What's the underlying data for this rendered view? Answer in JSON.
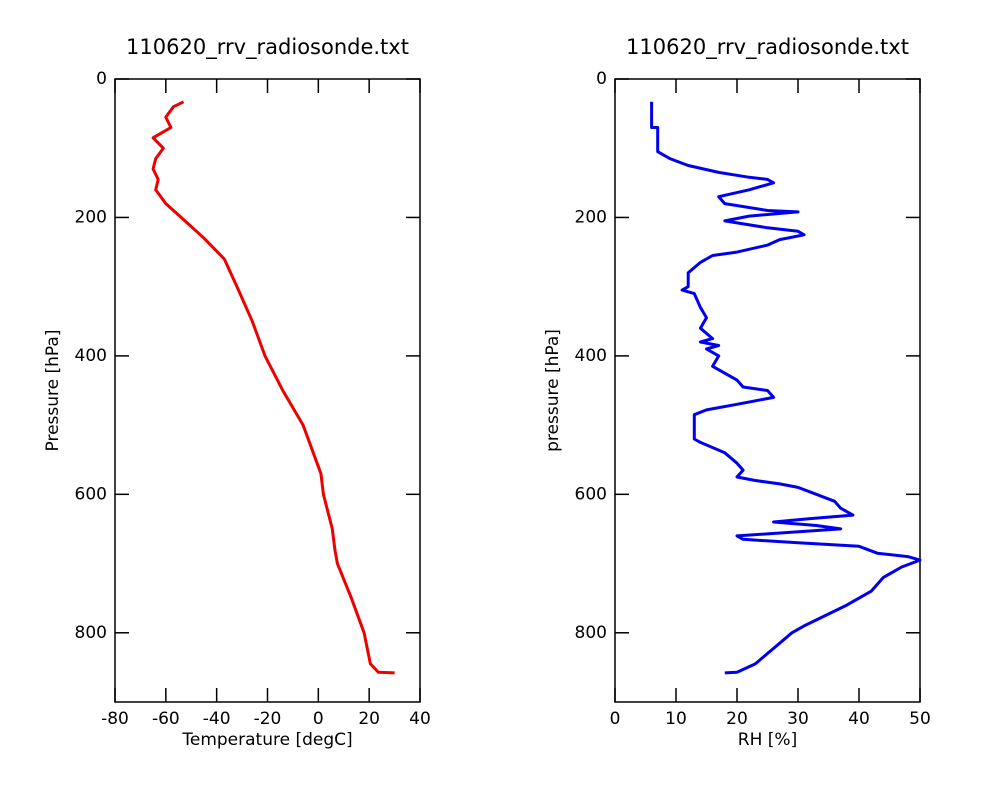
{
  "chart_data": [
    {
      "type": "line",
      "title": "110620_rrv_radiosonde.txt",
      "xlabel": "Temperature [degC]",
      "ylabel": "Pressure [hPa]",
      "xlim": [
        -80,
        40
      ],
      "xticks": [
        -80,
        -60,
        -40,
        -20,
        0,
        20,
        40
      ],
      "ylim": [
        0,
        900
      ],
      "yticks": [
        0,
        200,
        400,
        600,
        800
      ],
      "yreverse": true,
      "color": "#ee0000",
      "x": [
        -53,
        -57,
        -60,
        -58,
        -65,
        -61,
        -64,
        -65,
        -63,
        -64,
        -60,
        -54,
        -45,
        -37,
        -32,
        -26,
        -21,
        -14,
        -6,
        -1,
        1,
        2,
        5.5,
        6.5,
        7.5,
        13,
        18,
        20.5,
        23.6,
        30
      ],
      "y": [
        33,
        40,
        55,
        70,
        85,
        100,
        115,
        130,
        145,
        160,
        180,
        200,
        230,
        260,
        300,
        350,
        400,
        450,
        500,
        550,
        570,
        600,
        650,
        680,
        700,
        750,
        800,
        845,
        857,
        858
      ]
    },
    {
      "type": "line",
      "title": "110620_rrv_radiosonde.txt",
      "xlabel": "RH [%]",
      "ylabel": "pressure [hPa]",
      "xlim": [
        0,
        50
      ],
      "xticks": [
        0,
        10,
        20,
        30,
        40,
        50
      ],
      "ylim": [
        0,
        900
      ],
      "yticks": [
        0,
        200,
        400,
        600,
        800
      ],
      "yreverse": true,
      "color": "#0000ee",
      "x": [
        6,
        6,
        7,
        7,
        9,
        12,
        17,
        22,
        25,
        26,
        22,
        17,
        18,
        25,
        30,
        22,
        18,
        25,
        30,
        31,
        27,
        25,
        20,
        16,
        14,
        12,
        12,
        11,
        13,
        14,
        15,
        14,
        16,
        14,
        17,
        15,
        16,
        17,
        16,
        18,
        20,
        21,
        25,
        26,
        20,
        15,
        13,
        13,
        14,
        18,
        20,
        21,
        20,
        23,
        27,
        30,
        33,
        36,
        37,
        39,
        32,
        26,
        33,
        37,
        20,
        21,
        30,
        40,
        43,
        48,
        50,
        47,
        44,
        42,
        38,
        31,
        29,
        27,
        25,
        23,
        20,
        18
      ],
      "y": [
        33,
        70,
        70,
        105,
        115,
        125,
        135,
        142,
        145,
        150,
        160,
        170,
        180,
        190,
        192,
        198,
        205,
        215,
        220,
        225,
        232,
        240,
        250,
        255,
        265,
        280,
        300,
        305,
        310,
        330,
        345,
        360,
        375,
        380,
        385,
        390,
        395,
        400,
        415,
        425,
        435,
        445,
        450,
        460,
        470,
        478,
        485,
        520,
        525,
        540,
        555,
        565,
        575,
        580,
        585,
        590,
        600,
        610,
        620,
        630,
        635,
        640,
        645,
        650,
        660,
        665,
        670,
        675,
        685,
        690,
        695,
        705,
        720,
        740,
        760,
        790,
        800,
        815,
        830,
        845,
        857,
        858
      ]
    }
  ]
}
